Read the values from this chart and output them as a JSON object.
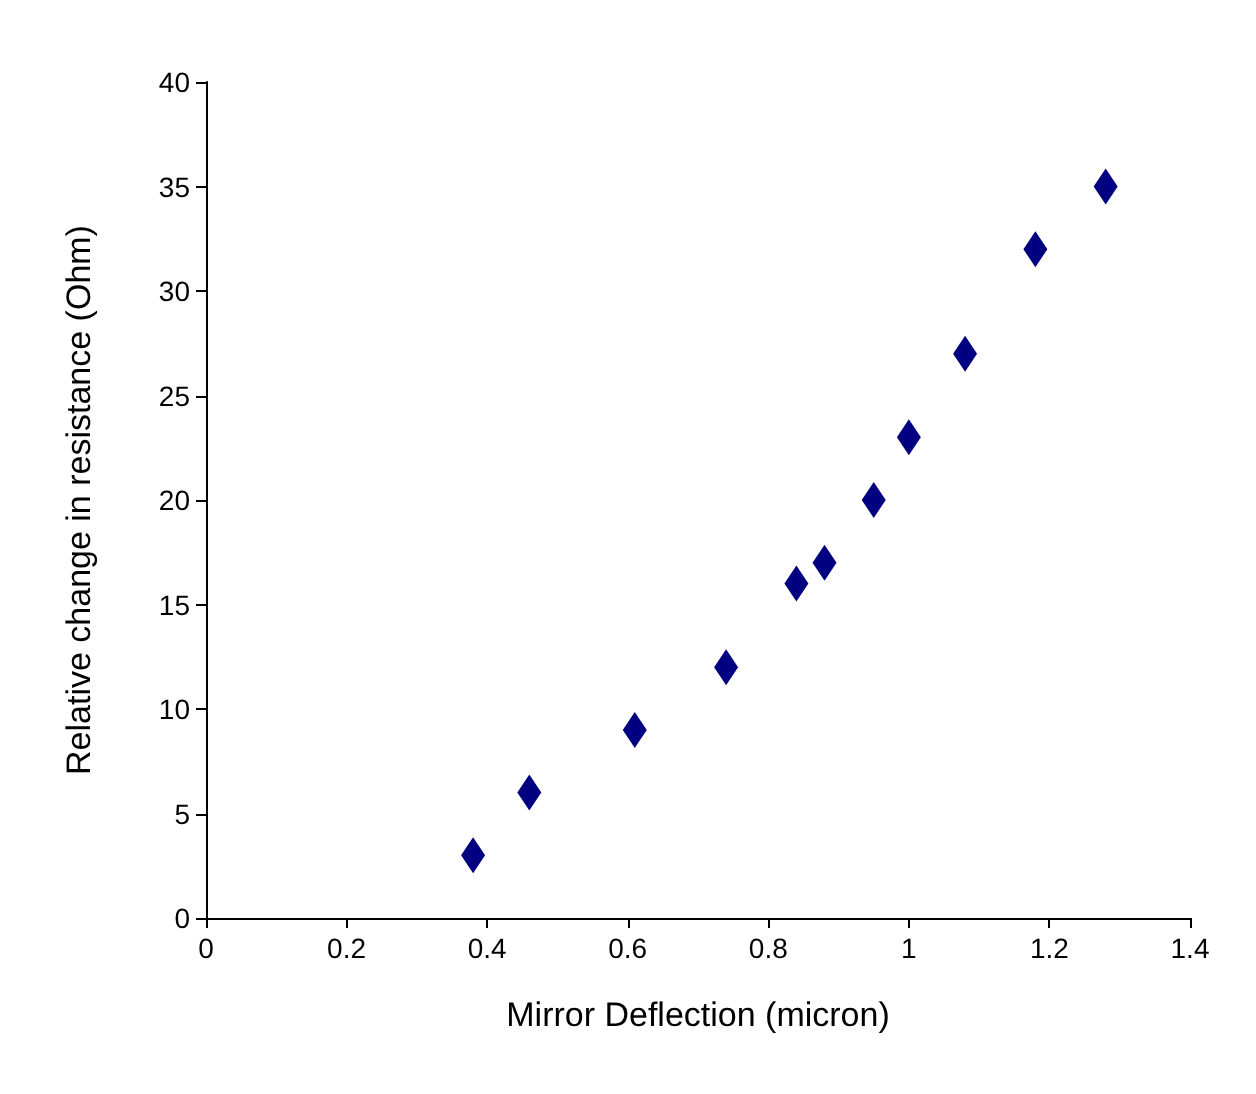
{
  "chart_data": {
    "type": "scatter",
    "xlabel": "Mirror Deflection (micron)",
    "ylabel": "Relative change in resistance (Ohm)",
    "x": [
      0.38,
      0.46,
      0.61,
      0.74,
      0.84,
      0.88,
      0.95,
      1.0,
      1.08,
      1.18,
      1.28
    ],
    "series": [
      {
        "color": "#000080",
        "values": [
          3,
          6,
          9,
          12,
          16,
          17,
          20,
          23,
          27,
          32,
          35
        ]
      }
    ],
    "xlim": [
      0,
      1.4
    ],
    "xticks": [
      0,
      0.2,
      0.4,
      0.6,
      0.8,
      1,
      1.2,
      1.4
    ],
    "ylim": [
      0,
      40
    ],
    "yticks": [
      0,
      5,
      10,
      15,
      20,
      25,
      30,
      35,
      40
    ],
    "marker": "diamond",
    "grid": false
  }
}
